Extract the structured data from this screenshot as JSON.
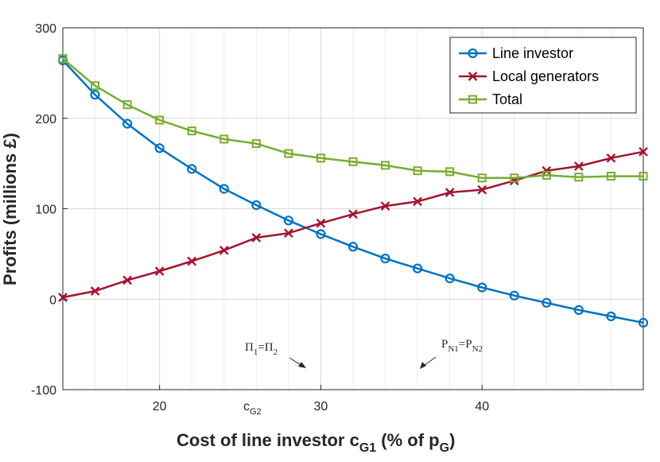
{
  "chart_data": {
    "type": "line",
    "title": "",
    "xlabel": "Cost of line investor c",
    "xlabel_sub": "G1",
    "xlabel_tail": " (% of p",
    "xlabel_tail_sub": "G",
    "xlabel_end": ")",
    "ylabel": "Profits (millions £)",
    "xlim": [
      14,
      50
    ],
    "ylim": [
      -100,
      300
    ],
    "xticks": [
      20,
      30,
      40
    ],
    "yticks": [
      -100,
      0,
      100,
      200,
      300
    ],
    "minor_xticks": [
      16,
      18,
      22,
      24,
      26,
      28,
      32,
      34,
      36,
      38,
      42,
      44,
      46,
      48
    ],
    "grid": true,
    "legend_position": "top-right",
    "x": [
      14,
      16,
      18,
      20,
      22,
      24,
      26,
      28,
      30,
      32,
      34,
      36,
      38,
      40,
      42,
      44,
      46,
      48,
      50
    ],
    "series": [
      {
        "name": "Line investor",
        "color": "#0072BD",
        "marker": "circle",
        "values": [
          264,
          226,
          194,
          167,
          144,
          122,
          104,
          87,
          72,
          58,
          45,
          34,
          23,
          13,
          4,
          -4,
          -12,
          -19,
          -26
        ]
      },
      {
        "name": "Local generators",
        "color": "#A2142F",
        "marker": "x",
        "values": [
          2,
          9,
          21,
          31,
          42,
          54,
          68,
          73,
          84,
          94,
          103,
          108,
          118,
          121,
          131,
          142,
          147,
          156,
          163
        ]
      },
      {
        "name": "Total",
        "color": "#77AC30",
        "marker": "square",
        "values": [
          266,
          236,
          215,
          198,
          186,
          177,
          172,
          161,
          156,
          152,
          148,
          142,
          141,
          134,
          134,
          137,
          135,
          136,
          136
        ]
      }
    ],
    "annotations": {
      "cg2_label": "c",
      "cg2_sub": "G2",
      "pi_equal": {
        "a": "Π",
        "a_sub": "1",
        "mid": "=Π",
        "b_sub": "2",
        "arrow_to_x": 30
      },
      "pn_equal": {
        "a": "P",
        "a_sub": "N1",
        "mid": "=P",
        "b_sub": "N2",
        "arrow_to_x": 36
      }
    }
  }
}
